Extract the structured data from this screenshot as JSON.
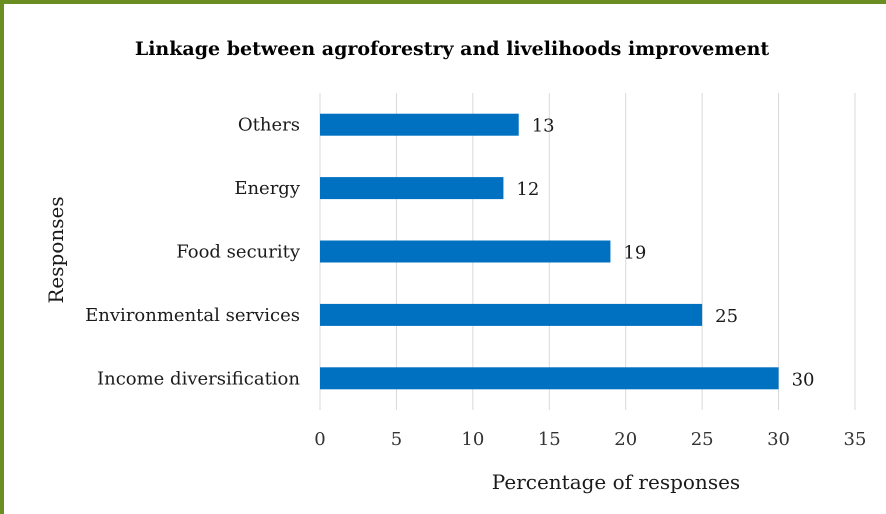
{
  "chart_data": {
    "type": "bar",
    "orientation": "horizontal",
    "title": "Linkage between agroforestry and livelihoods improvement",
    "xlabel": "Percentage of responses",
    "ylabel": "Responses",
    "categories": [
      "Others",
      "Energy",
      "Food security",
      "Environmental services",
      "Income diversification"
    ],
    "values": [
      13,
      12,
      19,
      25,
      30
    ],
    "xlim": [
      0,
      35
    ],
    "xticks": [
      0,
      5,
      10,
      15,
      20,
      25,
      30,
      35
    ],
    "grid": "vertical",
    "legend": "none",
    "bar_color": "#0070c0",
    "frame_color": "#6b8e23"
  }
}
